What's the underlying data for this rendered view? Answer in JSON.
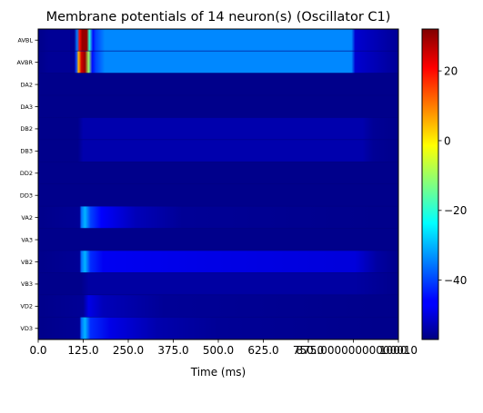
{
  "chart_data": {
    "type": "heatmap",
    "title": "Membrane potentials of 14 neuron(s) (Oscillator C1)",
    "xlabel": "Time (ms)",
    "ylabel": "",
    "colormap": "jet",
    "grid": false,
    "rows": [
      "AVBL",
      "AVBR",
      "DA2",
      "DA3",
      "DB2",
      "DB3",
      "DD2",
      "DD3",
      "VA2",
      "VA3",
      "VB2",
      "VB3",
      "VD2",
      "VD3"
    ],
    "xlim": [
      0,
      1000
    ],
    "x_ticks": [
      0,
      125,
      250,
      375,
      500,
      625,
      750,
      875,
      1000
    ],
    "x_tick_labels": [
      "0.0",
      "125.0",
      "250.0",
      "375.0",
      "500.0",
      "625.0",
      "750.0",
      "875.0000000000001",
      "1000.0"
    ],
    "color_range": [
      -57,
      32
    ],
    "colorbar_ticks": [
      20,
      0,
      -20,
      -40
    ],
    "colorbar_tick_labels": [
      "20",
      "0",
      "−20",
      "−40"
    ],
    "resting_potential": -56,
    "segments": {
      "AVBL": [
        [
          0,
          -56
        ],
        [
          30,
          -55
        ],
        [
          100,
          -55
        ],
        [
          108,
          -35
        ],
        [
          115,
          20
        ],
        [
          122,
          30
        ],
        [
          135,
          30
        ],
        [
          142,
          -20
        ],
        [
          152,
          -45
        ],
        [
          160,
          -40
        ],
        [
          185,
          -34
        ],
        [
          870,
          -34
        ],
        [
          880,
          -50
        ],
        [
          1000,
          -55
        ]
      ],
      "AVBR": [
        [
          0,
          -56
        ],
        [
          30,
          -55
        ],
        [
          100,
          -55
        ],
        [
          106,
          -40
        ],
        [
          112,
          5
        ],
        [
          120,
          25
        ],
        [
          130,
          30
        ],
        [
          140,
          -10
        ],
        [
          150,
          -45
        ],
        [
          160,
          -40
        ],
        [
          185,
          -34
        ],
        [
          870,
          -34
        ],
        [
          880,
          -50
        ],
        [
          1000,
          -55
        ]
      ],
      "DA2": [
        [
          0,
          -56
        ],
        [
          1000,
          -56
        ]
      ],
      "DA3": [
        [
          0,
          -56
        ],
        [
          1000,
          -56
        ]
      ],
      "DB2": [
        [
          0,
          -56
        ],
        [
          110,
          -56
        ],
        [
          125,
          -53
        ],
        [
          900,
          -53
        ],
        [
          930,
          -55
        ],
        [
          1000,
          -56
        ]
      ],
      "DB3": [
        [
          0,
          -56
        ],
        [
          110,
          -56
        ],
        [
          125,
          -53
        ],
        [
          900,
          -53
        ],
        [
          930,
          -55
        ],
        [
          1000,
          -56
        ]
      ],
      "DD2": [
        [
          0,
          -56
        ],
        [
          1000,
          -56
        ]
      ],
      "DD3": [
        [
          0,
          -56
        ],
        [
          1000,
          -56
        ]
      ],
      "VA2": [
        [
          0,
          -56
        ],
        [
          115,
          -55
        ],
        [
          120,
          -36
        ],
        [
          130,
          -30
        ],
        [
          145,
          -40
        ],
        [
          175,
          -46
        ],
        [
          270,
          -52
        ],
        [
          400,
          -55
        ],
        [
          1000,
          -56
        ]
      ],
      "VA3": [
        [
          0,
          -56
        ],
        [
          1000,
          -56
        ]
      ],
      "VB2": [
        [
          0,
          -56
        ],
        [
          115,
          -55
        ],
        [
          120,
          -36
        ],
        [
          130,
          -30
        ],
        [
          145,
          -42
        ],
        [
          180,
          -47
        ],
        [
          450,
          -48
        ],
        [
          880,
          -49
        ],
        [
          940,
          -54
        ],
        [
          1000,
          -56
        ]
      ],
      "VB3": [
        [
          0,
          -56
        ],
        [
          120,
          -56
        ],
        [
          140,
          -54
        ],
        [
          880,
          -54
        ],
        [
          1000,
          -56
        ]
      ],
      "VD2": [
        [
          0,
          -56
        ],
        [
          125,
          -55
        ],
        [
          140,
          -48
        ],
        [
          180,
          -52
        ],
        [
          350,
          -55
        ],
        [
          1000,
          -56
        ]
      ],
      "VD3": [
        [
          0,
          -56
        ],
        [
          115,
          -55
        ],
        [
          120,
          -36
        ],
        [
          130,
          -30
        ],
        [
          145,
          -42
        ],
        [
          200,
          -48
        ],
        [
          330,
          -53
        ],
        [
          500,
          -55
        ],
        [
          1000,
          -56
        ]
      ]
    }
  }
}
